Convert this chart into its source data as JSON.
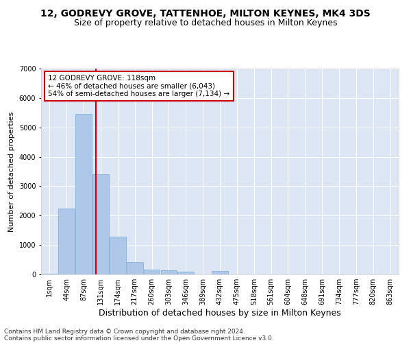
{
  "title": "12, GODREVY GROVE, TATTENHOE, MILTON KEYNES, MK4 3DS",
  "subtitle": "Size of property relative to detached houses in Milton Keynes",
  "xlabel": "Distribution of detached houses by size in Milton Keynes",
  "ylabel": "Number of detached properties",
  "categories": [
    "1sqm",
    "44sqm",
    "87sqm",
    "131sqm",
    "174sqm",
    "217sqm",
    "260sqm",
    "303sqm",
    "346sqm",
    "389sqm",
    "432sqm",
    "475sqm",
    "518sqm",
    "561sqm",
    "604sqm",
    "648sqm",
    "691sqm",
    "734sqm",
    "777sqm",
    "820sqm",
    "863sqm"
  ],
  "bar_heights": [
    30,
    2250,
    5450,
    3400,
    1280,
    430,
    170,
    130,
    100,
    0,
    110,
    0,
    0,
    0,
    0,
    0,
    0,
    0,
    0,
    0,
    0
  ],
  "bar_color": "#aec6e8",
  "bar_edge_color": "#7aafd4",
  "background_color": "#dce6f5",
  "grid_color": "#ffffff",
  "vline_color": "#cc0000",
  "annotation_text": "12 GODREVY GROVE: 118sqm\n← 46% of detached houses are smaller (6,043)\n54% of semi-detached houses are larger (7,134) →",
  "annotation_box_color": "#ffffff",
  "annotation_box_edge": "#cc0000",
  "ylim": [
    0,
    7000
  ],
  "yticks": [
    0,
    1000,
    2000,
    3000,
    4000,
    5000,
    6000,
    7000
  ],
  "footer_line1": "Contains HM Land Registry data © Crown copyright and database right 2024.",
  "footer_line2": "Contains public sector information licensed under the Open Government Licence v3.0.",
  "title_fontsize": 10,
  "subtitle_fontsize": 9,
  "xlabel_fontsize": 9,
  "ylabel_fontsize": 8,
  "tick_fontsize": 7,
  "annot_fontsize": 7.5,
  "footer_fontsize": 6.5
}
